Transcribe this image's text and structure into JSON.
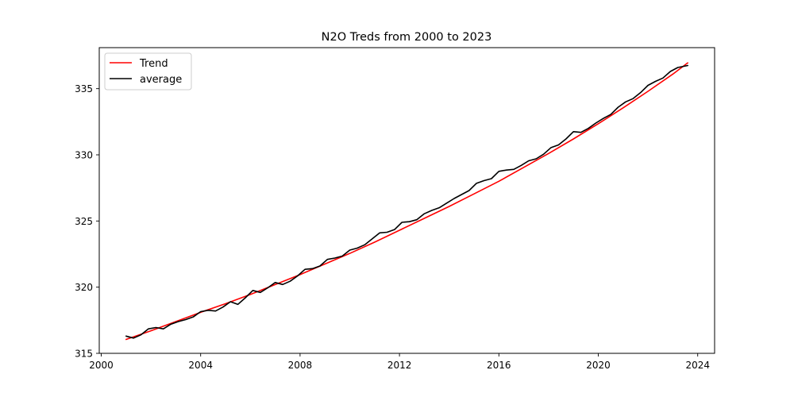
{
  "chart_data": {
    "type": "line",
    "title": "N2O Treds from 2000 to 2023",
    "xlabel": "",
    "ylabel": "",
    "xlim": [
      1999.92,
      2024.68
    ],
    "ylim": [
      315.0,
      338.1
    ],
    "xticks": [
      2000,
      2004,
      2008,
      2012,
      2016,
      2020,
      2024
    ],
    "xtick_labels": [
      "2000",
      "2004",
      "2008",
      "2012",
      "2016",
      "2020",
      "2024"
    ],
    "yticks": [
      315,
      320,
      325,
      330,
      335
    ],
    "ytick_labels": [
      "315",
      "320",
      "325",
      "330",
      "335"
    ],
    "grid": false,
    "legend_position": "top-left",
    "series": [
      {
        "name": "Trend",
        "color": "#ff0000",
        "x": [
          2001.0,
          2002.0,
          2003.0,
          2004.0,
          2005.0,
          2006.0,
          2007.0,
          2008.0,
          2009.0,
          2010.0,
          2011.0,
          2012.0,
          2013.0,
          2014.0,
          2015.0,
          2016.0,
          2017.0,
          2018.0,
          2019.0,
          2020.0,
          2021.0,
          2022.0,
          2023.0,
          2023.6
        ],
        "y": [
          316.05,
          316.7,
          317.4,
          318.1,
          318.75,
          319.45,
          320.2,
          320.95,
          321.75,
          322.55,
          323.4,
          324.3,
          325.2,
          326.1,
          327.05,
          328.0,
          329.05,
          330.1,
          331.2,
          332.35,
          333.55,
          334.8,
          336.1,
          336.95
        ]
      },
      {
        "name": "average",
        "color": "#000000",
        "x": [
          2001.0,
          2001.3,
          2001.6,
          2001.9,
          2002.2,
          2002.5,
          2002.8,
          2003.1,
          2003.4,
          2003.7,
          2004.0,
          2004.3,
          2004.6,
          2004.9,
          2005.2,
          2005.5,
          2005.8,
          2006.1,
          2006.4,
          2006.7,
          2007.0,
          2007.3,
          2007.6,
          2007.9,
          2008.2,
          2008.5,
          2008.8,
          2009.1,
          2009.4,
          2009.7,
          2010.0,
          2010.3,
          2010.6,
          2010.9,
          2011.2,
          2011.5,
          2011.8,
          2012.1,
          2012.4,
          2012.7,
          2013.0,
          2013.3,
          2013.6,
          2013.9,
          2014.2,
          2014.5,
          2014.8,
          2015.1,
          2015.4,
          2015.7,
          2016.0,
          2016.3,
          2016.6,
          2016.9,
          2017.2,
          2017.5,
          2017.8,
          2018.1,
          2018.4,
          2018.7,
          2019.0,
          2019.3,
          2019.6,
          2019.9,
          2020.2,
          2020.5,
          2020.8,
          2021.1,
          2021.4,
          2021.7,
          2022.0,
          2022.3,
          2022.6,
          2022.9,
          2023.2,
          2023.6
        ],
        "y": [
          316.3,
          316.15,
          316.4,
          316.85,
          316.95,
          316.85,
          317.2,
          317.4,
          317.55,
          317.75,
          318.15,
          318.25,
          318.2,
          318.5,
          318.9,
          318.7,
          319.2,
          319.75,
          319.6,
          319.95,
          320.35,
          320.2,
          320.45,
          320.85,
          321.35,
          321.4,
          321.6,
          322.1,
          322.2,
          322.35,
          322.8,
          322.95,
          323.2,
          323.65,
          324.1,
          324.15,
          324.35,
          324.9,
          324.95,
          325.1,
          325.55,
          325.8,
          326.0,
          326.35,
          326.7,
          327.0,
          327.3,
          327.85,
          328.05,
          328.2,
          328.75,
          328.85,
          328.9,
          329.2,
          329.55,
          329.7,
          330.05,
          330.55,
          330.75,
          331.2,
          331.75,
          331.7,
          332.0,
          332.4,
          332.75,
          333.05,
          333.6,
          334.0,
          334.25,
          334.7,
          335.25,
          335.55,
          335.8,
          336.3,
          336.6,
          336.75
        ]
      }
    ]
  }
}
